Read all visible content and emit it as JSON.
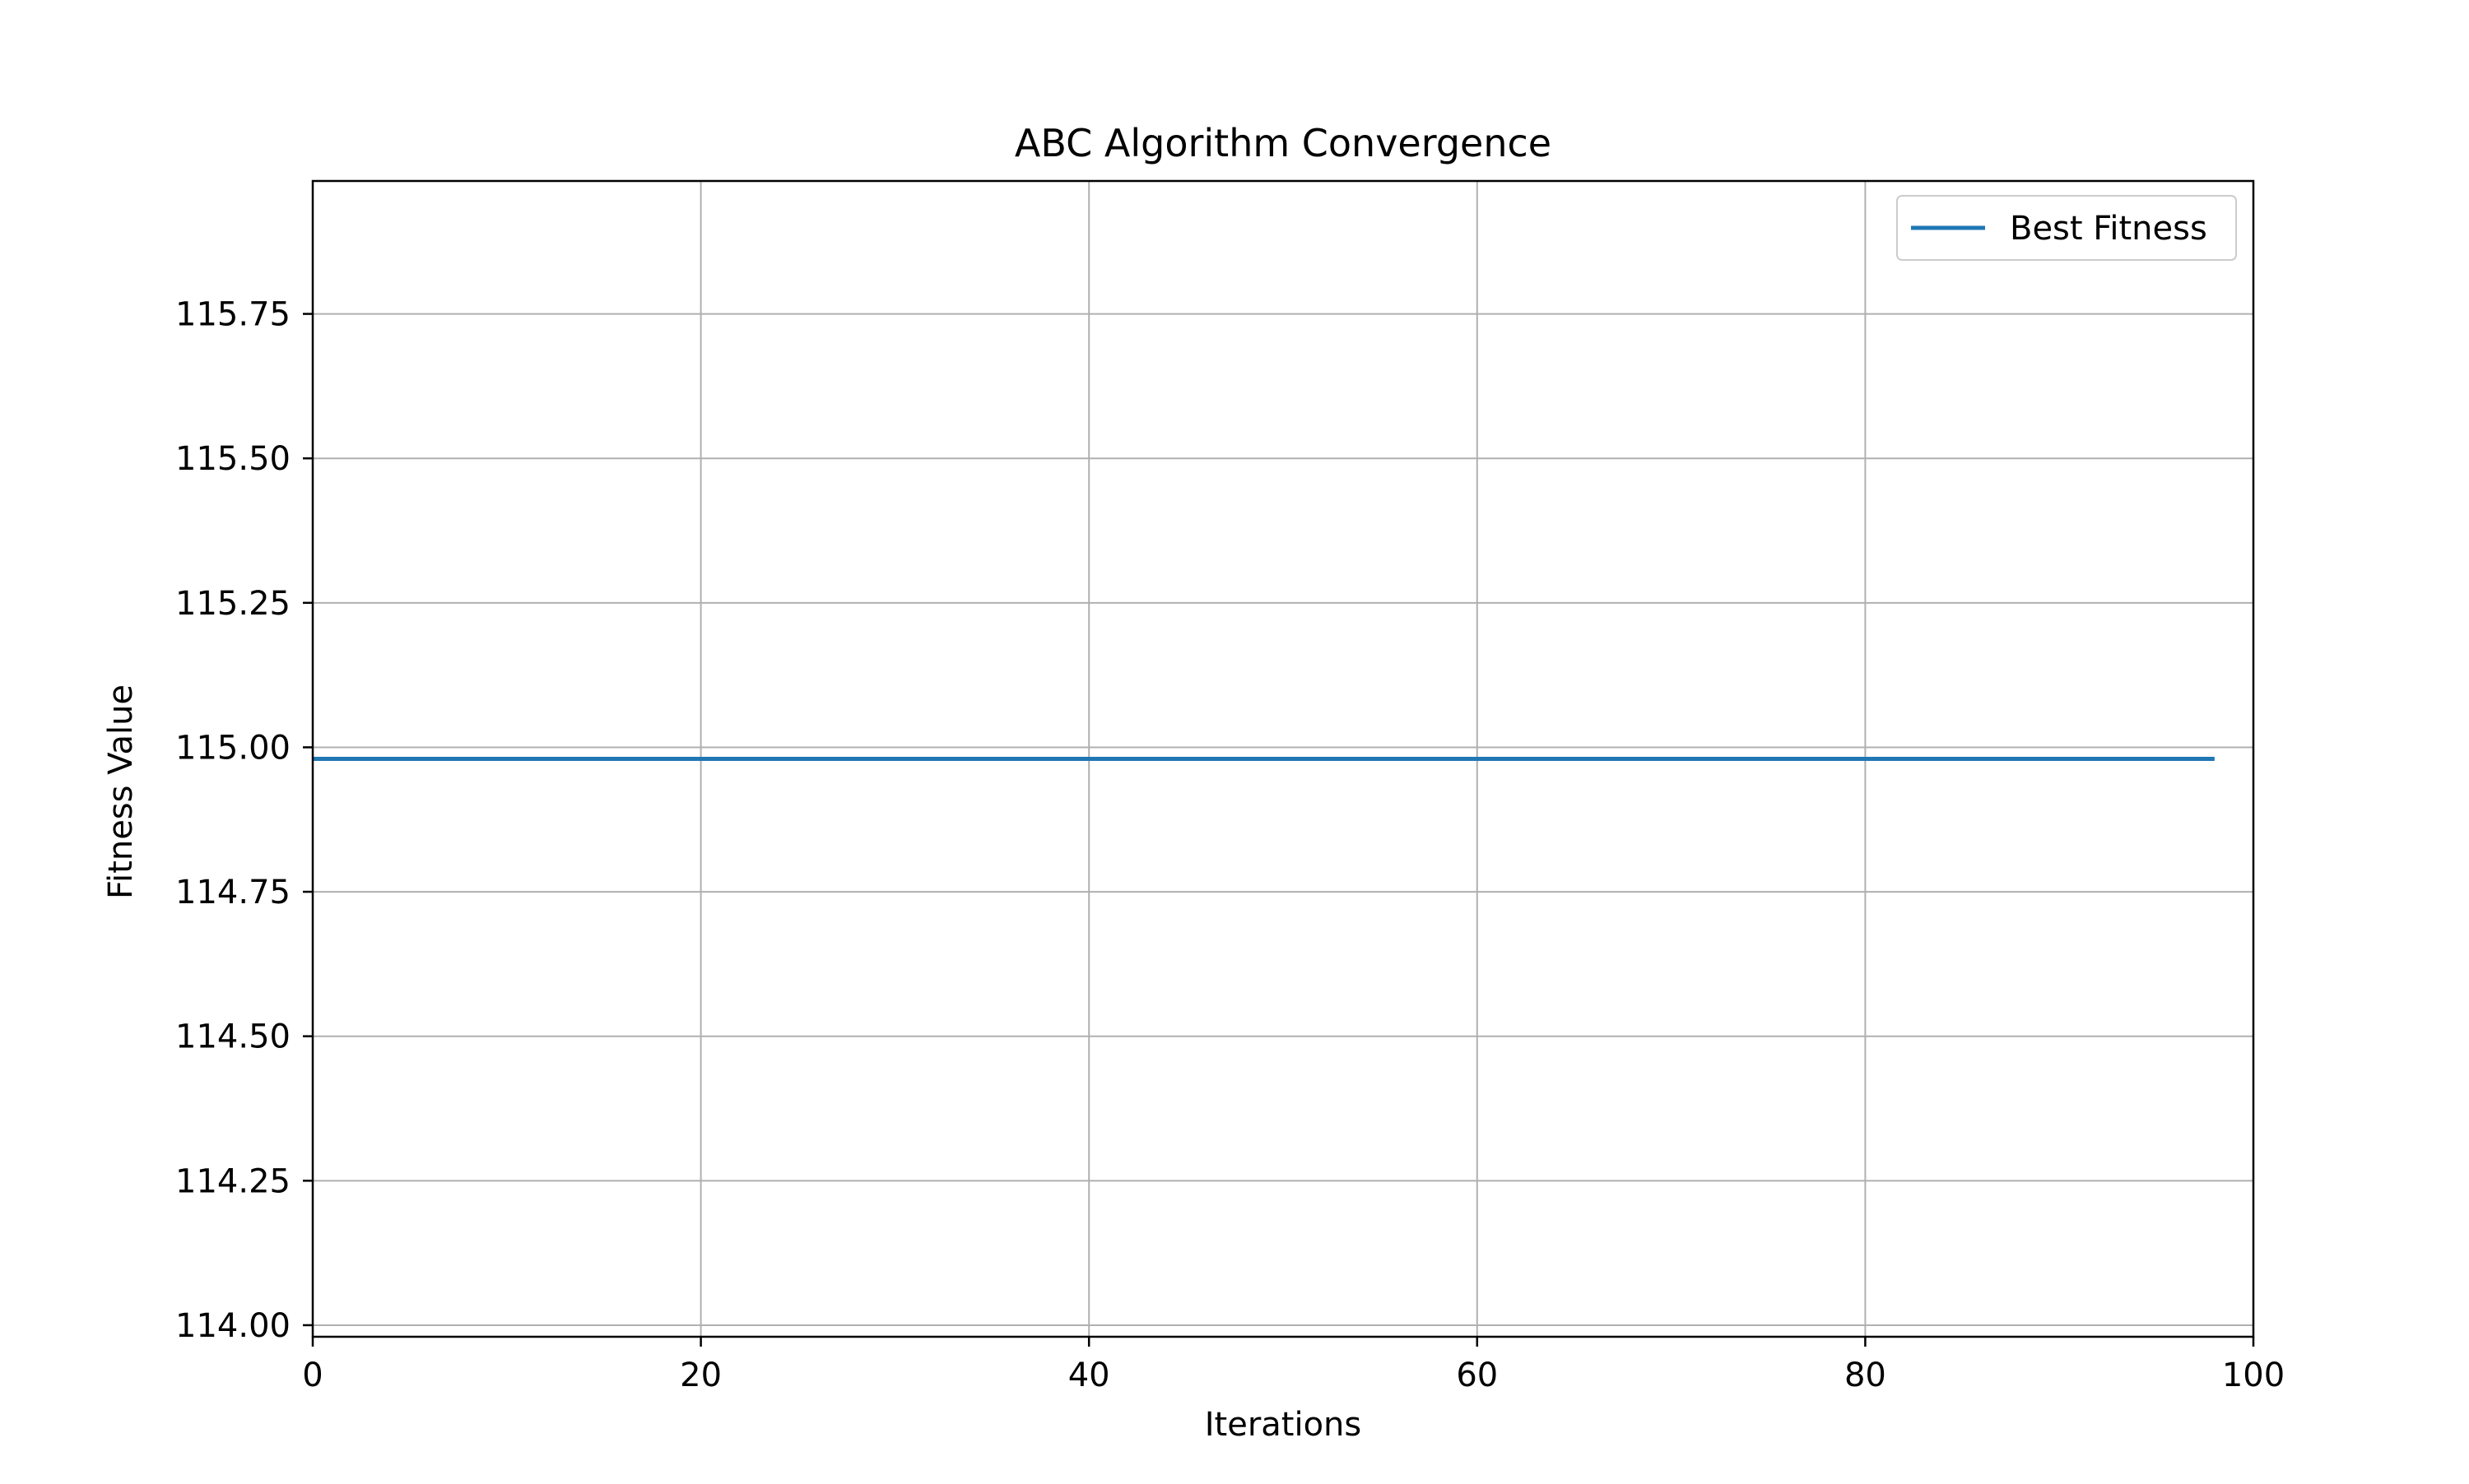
{
  "chart_data": {
    "type": "line",
    "title": "ABC Algorithm Convergence",
    "xlabel": "Iterations",
    "ylabel": "Fitness Value",
    "xlim": [
      0,
      100
    ],
    "ylim": [
      113.98,
      115.98
    ],
    "x_ticks": [
      0,
      20,
      40,
      60,
      80,
      100
    ],
    "x_tick_labels": [
      "0",
      "20",
      "40",
      "60",
      "80",
      "100"
    ],
    "y_ticks": [
      114.0,
      114.25,
      114.5,
      114.75,
      115.0,
      115.25,
      115.5,
      115.75
    ],
    "y_tick_labels": [
      "114.00",
      "114.25",
      "114.50",
      "114.75",
      "115.00",
      "115.25",
      "115.50",
      "115.75"
    ],
    "grid": true,
    "legend_position": "top-right",
    "series": [
      {
        "name": "Best Fitness",
        "color": "#1f77b4",
        "x": [
          0,
          98
        ],
        "y": [
          114.98,
          114.98
        ]
      }
    ]
  }
}
